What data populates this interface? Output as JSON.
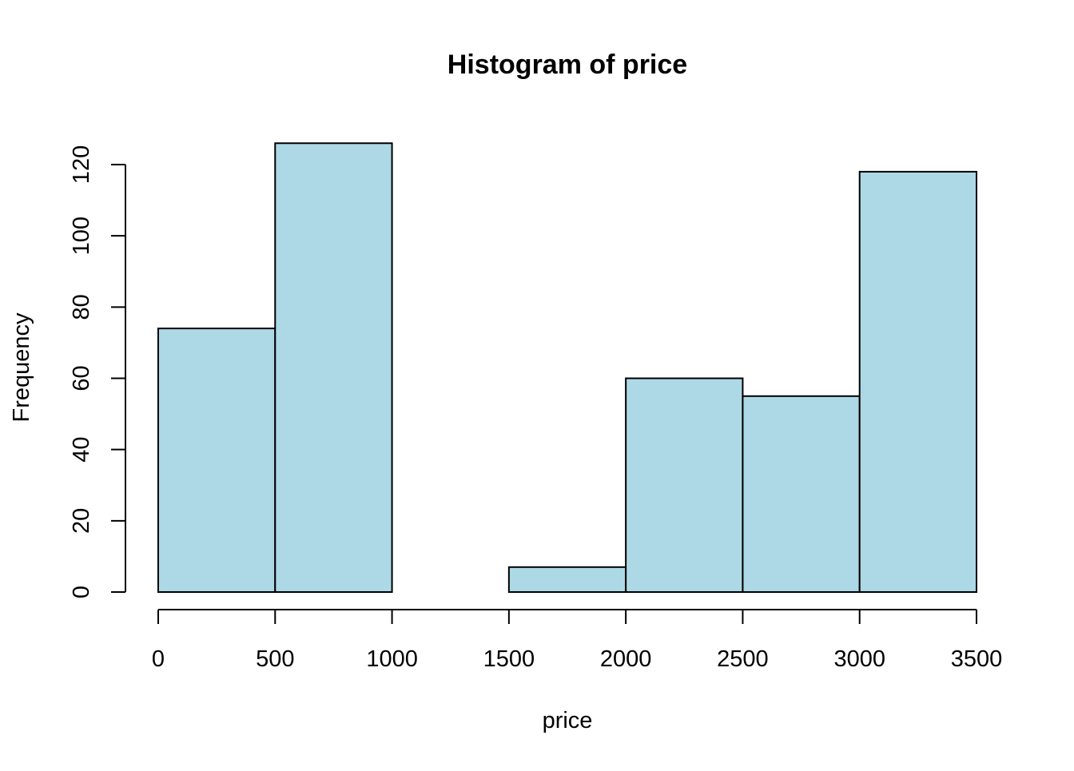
{
  "chart_data": {
    "type": "bar",
    "title": "Histogram of price",
    "xlabel": "price",
    "ylabel": "Frequency",
    "bins": [
      {
        "from": 0,
        "to": 500,
        "count": 74
      },
      {
        "from": 500,
        "to": 1000,
        "count": 126
      },
      {
        "from": 1000,
        "to": 1500,
        "count": 0
      },
      {
        "from": 1500,
        "to": 2000,
        "count": 7
      },
      {
        "from": 2000,
        "to": 2500,
        "count": 60
      },
      {
        "from": 2500,
        "to": 3000,
        "count": 55
      },
      {
        "from": 3000,
        "to": 3500,
        "count": 118
      }
    ],
    "x_ticks": [
      "0",
      "500",
      "1000",
      "1500",
      "2000",
      "2500",
      "3000",
      "3500"
    ],
    "y_ticks": [
      "0",
      "20",
      "40",
      "60",
      "80",
      "100",
      "120"
    ],
    "xlim": [
      0,
      3500
    ],
    "ylim": [
      0,
      120
    ],
    "bar_fill": "#add8e6",
    "bar_stroke": "#000000",
    "grid": false,
    "legend": "none"
  }
}
